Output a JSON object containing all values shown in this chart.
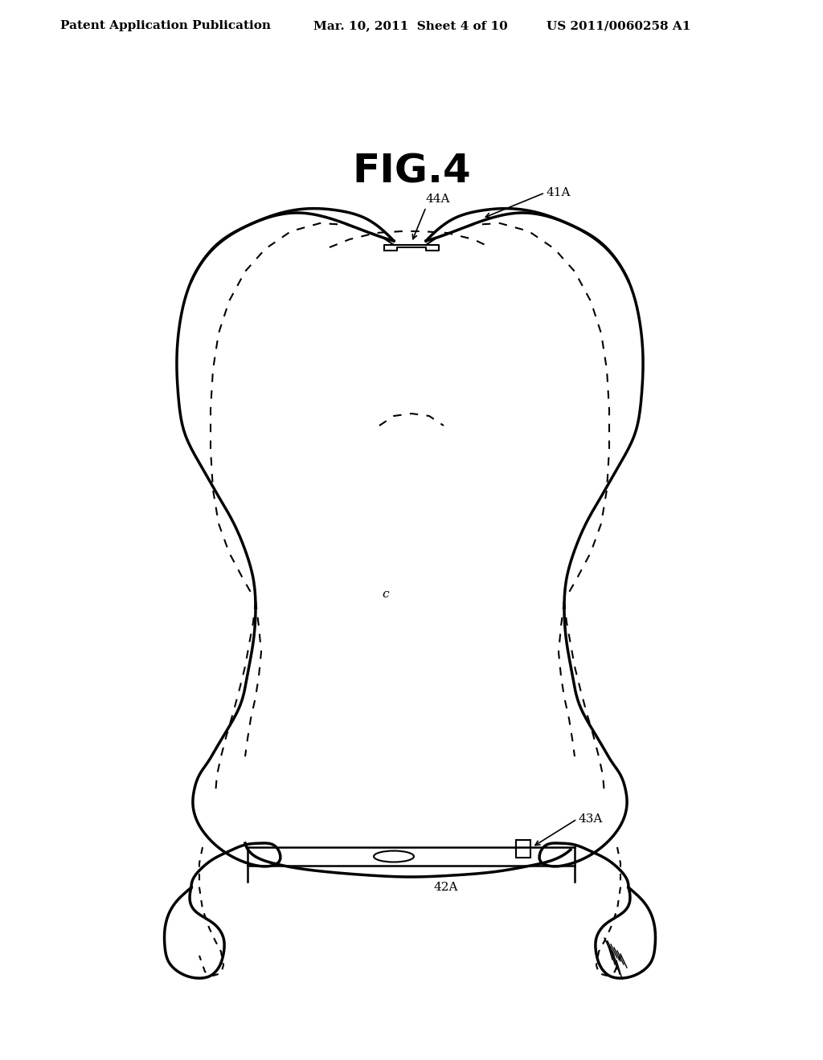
{
  "title": "FIG.4",
  "header_left": "Patent Application Publication",
  "header_mid": "Mar. 10, 2011  Sheet 4 of 10",
  "header_right": "US 2011/0060258 A1",
  "label_41A": "41A",
  "label_42A": "42A",
  "label_43A": "43A",
  "label_44A": "44A",
  "label_c": "c",
  "background_color": "#ffffff",
  "line_color": "#000000",
  "fig_title_fontsize": 36,
  "header_fontsize": 11,
  "label_fontsize": 11
}
